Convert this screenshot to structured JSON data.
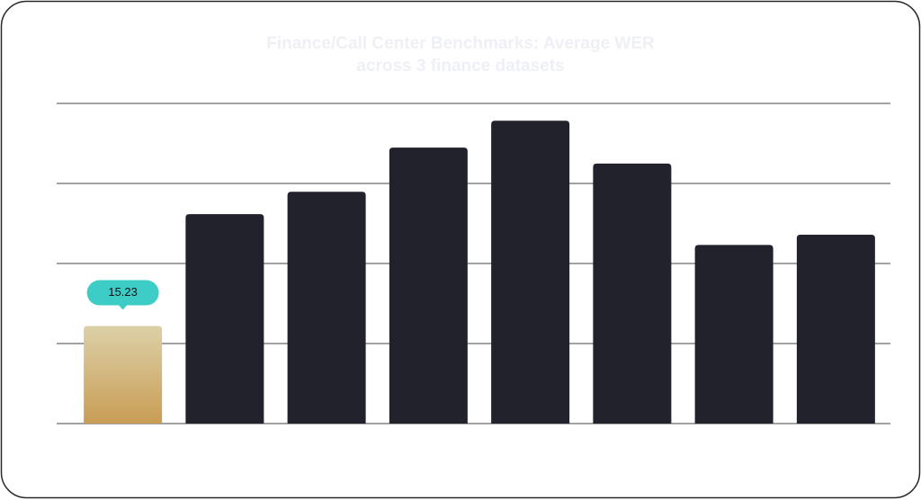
{
  "chart_data": {
    "type": "bar",
    "title": "Finance/Call Center Benchmarks: Average WER across 3 finance datasets",
    "categories": [
      null,
      null,
      null,
      null,
      null,
      null,
      null,
      null
    ],
    "values": [
      15.23,
      32.7,
      36.2,
      43.1,
      47.3,
      40.6,
      27.9,
      29.5
    ],
    "value_labels": [
      "15.23",
      null,
      null,
      null,
      null,
      null,
      null,
      null
    ],
    "colors": [
      "#d4b880",
      "#22222c",
      "#22222c",
      "#22222c",
      "#22222c",
      "#22222c",
      "#22222c",
      "#22222c"
    ],
    "label_color": "#3ecdc6",
    "ylim": [
      0,
      50
    ],
    "yticks": [
      0,
      12.5,
      25,
      37.5,
      50
    ],
    "grid": true
  }
}
